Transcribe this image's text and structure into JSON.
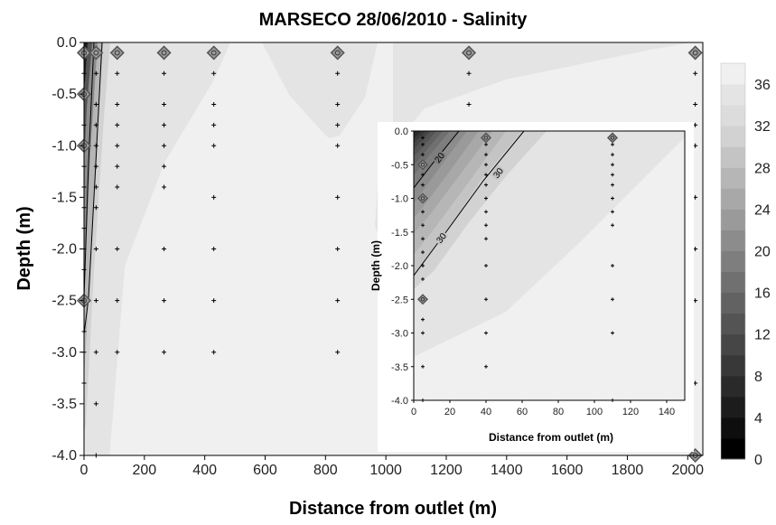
{
  "chart_data": [
    {
      "type": "contour",
      "title": "MARSECO 28/06/2010 - Salinity",
      "xlabel": "Distance from outlet (m)",
      "ylabel": "Depth (m)",
      "xlim": [
        0,
        2050
      ],
      "ylim": [
        -4.0,
        0.0
      ],
      "x_ticks": [
        "0",
        "200",
        "400",
        "600",
        "800",
        "1000",
        "1200",
        "1400",
        "1600",
        "1800",
        "2000"
      ],
      "y_ticks": [
        "0.0",
        "-0.5",
        "-1.0",
        "-1.5",
        "-2.0",
        "-2.5",
        "-3.0",
        "-3.5",
        "-4.0"
      ],
      "grid": false,
      "colorbar": {
        "min": 0,
        "max": 38,
        "step": 2,
        "ticks": [
          "0",
          "4",
          "8",
          "12",
          "16",
          "20",
          "24",
          "28",
          "32",
          "36"
        ],
        "colors": [
          "#000000",
          "#0e0e0e",
          "#1c1c1c",
          "#2a2a2a",
          "#383838",
          "#464646",
          "#545454",
          "#626262",
          "#707070",
          "#7e7e7e",
          "#8c8c8c",
          "#9a9a9a",
          "#a8a8a8",
          "#b6b6b6",
          "#c4c4c4",
          "#d2d2d2",
          "#dcdcdc",
          "#e4e4e4",
          "#f0f0f0"
        ]
      },
      "stations": [
        {
          "x": 0,
          "depths": [
            -0.1,
            -0.3,
            -0.5,
            -0.8,
            -1.0,
            -1.2,
            -1.4,
            -1.6,
            -1.8,
            -2.0,
            -2.2,
            -2.5,
            -2.8,
            -3.0,
            -3.3
          ],
          "diamond_depths": [
            -0.1,
            -0.5,
            -1.0,
            -2.5
          ]
        },
        {
          "x": 40,
          "depths": [
            -0.1,
            -0.3,
            -0.6,
            -0.8,
            -1.0,
            -1.2,
            -1.4,
            -1.6,
            -2.0,
            -2.5,
            -3.0,
            -3.5,
            -4.0
          ],
          "diamond_depths": [
            -0.1
          ]
        },
        {
          "x": 110,
          "depths": [
            -0.1,
            -0.3,
            -0.6,
            -0.8,
            -1.0,
            -1.2,
            -1.4,
            -2.0,
            -2.5,
            -3.0
          ],
          "diamond_depths": [
            -0.1
          ]
        },
        {
          "x": 265,
          "depths": [
            -0.1,
            -0.3,
            -0.6,
            -0.8,
            -1.0,
            -1.2,
            -1.4,
            -2.0,
            -2.5,
            -3.0
          ],
          "diamond_depths": [
            -0.1
          ]
        },
        {
          "x": 430,
          "depths": [
            -0.1,
            -0.3,
            -0.6,
            -0.8,
            -1.0,
            -1.5,
            -2.0,
            -2.5,
            -3.0
          ],
          "diamond_depths": [
            -0.1
          ]
        },
        {
          "x": 840,
          "depths": [
            -0.1,
            -0.3,
            -0.6,
            -0.8,
            -1.0,
            -1.5,
            -2.0,
            -2.5,
            -3.0
          ],
          "diamond_depths": [
            -0.1
          ]
        },
        {
          "x": 1275,
          "depths": [
            -0.1,
            -0.3,
            -0.6,
            -0.8,
            -1.0
          ],
          "diamond_depths": [
            -0.1
          ]
        },
        {
          "x": 2025,
          "depths": [
            -0.1,
            -0.3,
            -0.6,
            -0.8,
            -1.0,
            -1.5,
            -2.0,
            -2.5,
            -3.3,
            -4.0
          ],
          "diamond_depths": [
            -0.1,
            -4.0
          ]
        }
      ]
    },
    {
      "type": "contour",
      "title": "",
      "xlabel": "Distance from outlet (m)",
      "ylabel": "Depth (m)",
      "xlim": [
        0,
        150
      ],
      "ylim": [
        -4.0,
        0.0
      ],
      "x_ticks": [
        "0",
        "20",
        "40",
        "60",
        "80",
        "100",
        "120",
        "140"
      ],
      "y_ticks": [
        "0.0",
        "-0.5",
        "-1.0",
        "-1.5",
        "-2.0",
        "-2.5",
        "-3.0",
        "-3.5",
        "-4.0"
      ],
      "contour_labels": [
        "20",
        "30",
        "30"
      ],
      "stations": [
        {
          "x": 5,
          "depths": [
            -0.1,
            -0.2,
            -0.35,
            -0.5,
            -0.65,
            -0.8,
            -1.0,
            -1.2,
            -1.4,
            -1.6,
            -1.8,
            -2.0,
            -2.2,
            -2.5,
            -2.8,
            -3.0,
            -3.5,
            -4.0
          ],
          "diamond_depths": [
            -0.5,
            -1.0,
            -2.5
          ]
        },
        {
          "x": 40,
          "depths": [
            -0.1,
            -0.2,
            -0.35,
            -0.5,
            -0.65,
            -0.8,
            -1.0,
            -1.2,
            -1.4,
            -1.6,
            -2.0,
            -2.5,
            -3.0,
            -3.5
          ],
          "diamond_depths": [
            -0.1
          ]
        },
        {
          "x": 110,
          "depths": [
            -0.1,
            -0.2,
            -0.35,
            -0.5,
            -0.65,
            -0.8,
            -1.0,
            -1.2,
            -1.4,
            -2.0,
            -2.5,
            -3.0,
            -4.0
          ],
          "diamond_depths": [
            -0.1
          ]
        }
      ]
    }
  ]
}
